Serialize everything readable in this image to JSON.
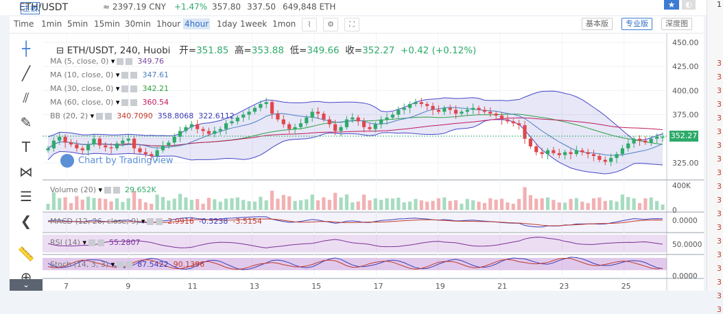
{
  "header": {
    "pair": "ETH/USDT",
    "pair_tag": "主板",
    "cny_price": "≈ 2397.19 CNY",
    "change": "+1.47%",
    "high": "357.80",
    "low": "337.50",
    "volume": "649,848 ETH"
  },
  "timeframes": [
    "Time",
    "1min",
    "5min",
    "15min",
    "30min",
    "1hour",
    "4hour",
    "1day",
    "1week",
    "1mon"
  ],
  "active_timeframe": "4hour",
  "modes": {
    "basic": "基本版",
    "pro": "专业版",
    "depth": "深度图"
  },
  "symbol_line": {
    "title": "ETH/USDT, 240, Huobi",
    "open_label": "开=",
    "open": "351.85",
    "high_label": "高=",
    "high": "353.88",
    "low_label": "低=",
    "low": "349.66",
    "close_label": "收=",
    "close": "352.27",
    "change": "+0.42 (+0.12%)"
  },
  "indicators": [
    {
      "label": "MA (5, close, 0)",
      "value": "349.76",
      "color": "#7b4aa0"
    },
    {
      "label": "MA (10, close, 0)",
      "value": "347.61",
      "color": "#4a7fc1"
    },
    {
      "label": "MA (30, close, 0)",
      "value": "342.21",
      "color": "#2e9e40"
    },
    {
      "label": "MA (60, close, 0)",
      "value": "360.54",
      "color": "#c2185b"
    }
  ],
  "bb": {
    "label": "BB (20, 2)",
    "v1": "340.7090",
    "v2": "358.8068",
    "v3": "322.6112"
  },
  "volume": {
    "label": "Volume (20)",
    "value": "29.652K"
  },
  "macd": {
    "label": "MACD (12, 26, close, 9)",
    "v1": "2.9916",
    "v2": "-0.5238",
    "v3": "-3.5154"
  },
  "rsi": {
    "label": "RSI (14)",
    "value": "55.2807"
  },
  "stoch": {
    "label": "Stoch (14, 3, 3)",
    "v1": "87.5422",
    "v2": "90.1396"
  },
  "price_axis": [
    "450.00",
    "425.00",
    "400.00",
    "375.00",
    "350.00",
    "325.00"
  ],
  "last_price": "352.27",
  "volume_axis": [
    "400K",
    "0"
  ],
  "macd_axis": "0.0000",
  "rsi_axis": "50.0000",
  "stoch_axis": "0.0000",
  "date_axis": [
    "7",
    "9",
    "11",
    "13",
    "15",
    "17",
    "19",
    "21",
    "23",
    "25"
  ],
  "watermark": "Chart by TradingView",
  "right_panel": [
    "1",
    "3",
    "3",
    "3",
    "3",
    "3",
    "3",
    "3",
    "3",
    "3",
    "3",
    "3",
    "3",
    "3",
    "3",
    "3",
    "3",
    "3",
    "3",
    "3"
  ],
  "chart_data": {
    "type": "candlestick",
    "title": "ETH/USDT, 240, Huobi",
    "x_ticks": [
      "7",
      "9",
      "11",
      "13",
      "15",
      "17",
      "19",
      "21",
      "23",
      "25"
    ],
    "ylim": [
      310,
      455
    ],
    "close_series": [
      340,
      348,
      352,
      346,
      344,
      340,
      338,
      344,
      350,
      343,
      341,
      340,
      345,
      348,
      350,
      340,
      336,
      334,
      332,
      338,
      343,
      346,
      352,
      358,
      362,
      365,
      360,
      358,
      355,
      358,
      360,
      366,
      368,
      372,
      375,
      378,
      382,
      386,
      388,
      376,
      370,
      365,
      360,
      362,
      366,
      372,
      378,
      376,
      370,
      365,
      358,
      362,
      370,
      372,
      368,
      362,
      360,
      365,
      370,
      372,
      375,
      380,
      382,
      386,
      388,
      386,
      384,
      380,
      378,
      382,
      380,
      376,
      378,
      380,
      382,
      380,
      378,
      376,
      374,
      370,
      368,
      366,
      364,
      350,
      342,
      336,
      334,
      338,
      335,
      333,
      336,
      334,
      338,
      336,
      334,
      332,
      328,
      326,
      330,
      334,
      340,
      345,
      350,
      348,
      346,
      350,
      352,
      352
    ]
  }
}
